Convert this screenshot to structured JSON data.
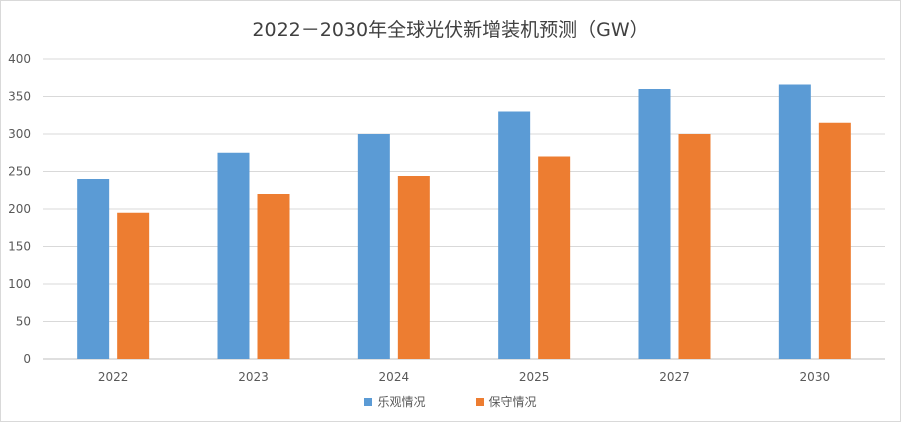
{
  "chart_data": {
    "type": "bar",
    "title": "2022－2030年全球光伏新增装机预测（GW）",
    "categories": [
      "2022",
      "2023",
      "2024",
      "2025",
      "2027",
      "2030"
    ],
    "series": [
      {
        "name": "乐观情况",
        "color": "#5B9BD5",
        "values": [
          240,
          275,
          300,
          330,
          360,
          366
        ]
      },
      {
        "name": "保守情况",
        "color": "#ED7D31",
        "values": [
          195,
          220,
          244,
          270,
          300,
          315
        ]
      }
    ],
    "yticks": [
      "0",
      "50",
      "100",
      "150",
      "200",
      "250",
      "300",
      "350",
      "400"
    ],
    "ylim": [
      0,
      400
    ],
    "grid": true,
    "legend_position": "bottom"
  }
}
